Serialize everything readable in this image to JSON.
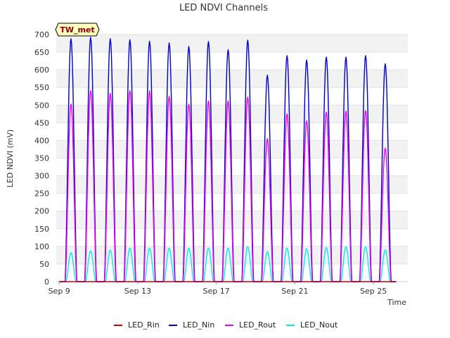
{
  "chart_data": {
    "type": "line",
    "title": "LED NDVI Channels",
    "xlabel": "Time",
    "ylabel": "LED NDVI (mV)",
    "ylim": [
      0,
      700
    ],
    "yticks": [
      0,
      50,
      100,
      150,
      200,
      250,
      300,
      350,
      400,
      450,
      500,
      550,
      600,
      650,
      700
    ],
    "xlim_days": [
      8.85,
      26.75
    ],
    "xticks": [
      {
        "day": 9,
        "label": "Sep 9"
      },
      {
        "day": 13,
        "label": "Sep 13"
      },
      {
        "day": 17,
        "label": "Sep 17"
      },
      {
        "day": 21,
        "label": "Sep 21"
      },
      {
        "day": 25,
        "label": "Sep 25"
      }
    ],
    "grid": "horizontal bands",
    "legend_position": "bottom",
    "station_tag": "TW_met",
    "daily_peak_days": [
      9.6,
      10.6,
      11.6,
      12.6,
      13.6,
      14.6,
      15.6,
      16.6,
      17.6,
      18.6,
      19.6,
      20.6,
      21.6,
      22.6,
      23.6,
      24.6,
      25.6
    ],
    "series": [
      {
        "name": "LED_Rin",
        "color": "#cc0000",
        "daily_peaks": [
          0,
          0,
          0,
          0,
          0,
          0,
          0,
          0,
          0,
          0,
          0,
          0,
          0,
          0,
          0,
          0,
          0
        ]
      },
      {
        "name": "LED_Nin",
        "color": "#0000cc",
        "daily_peaks": [
          688,
          692,
          688,
          685,
          681,
          676,
          666,
          680,
          657,
          684,
          585,
          640,
          628,
          636,
          636,
          640,
          617
        ]
      },
      {
        "name": "LED_Rout",
        "color": "#ee00ee",
        "daily_peaks": [
          503,
          541,
          533,
          541,
          540,
          525,
          503,
          512,
          512,
          523,
          405,
          475,
          455,
          480,
          483,
          484,
          378
        ]
      },
      {
        "name": "LED_Nout",
        "color": "#00eeee",
        "daily_peaks": [
          82,
          87,
          89,
          95,
          95,
          95,
          95,
          95,
          95,
          99,
          85,
          95,
          93,
          97,
          99,
          99,
          90
        ]
      }
    ]
  }
}
